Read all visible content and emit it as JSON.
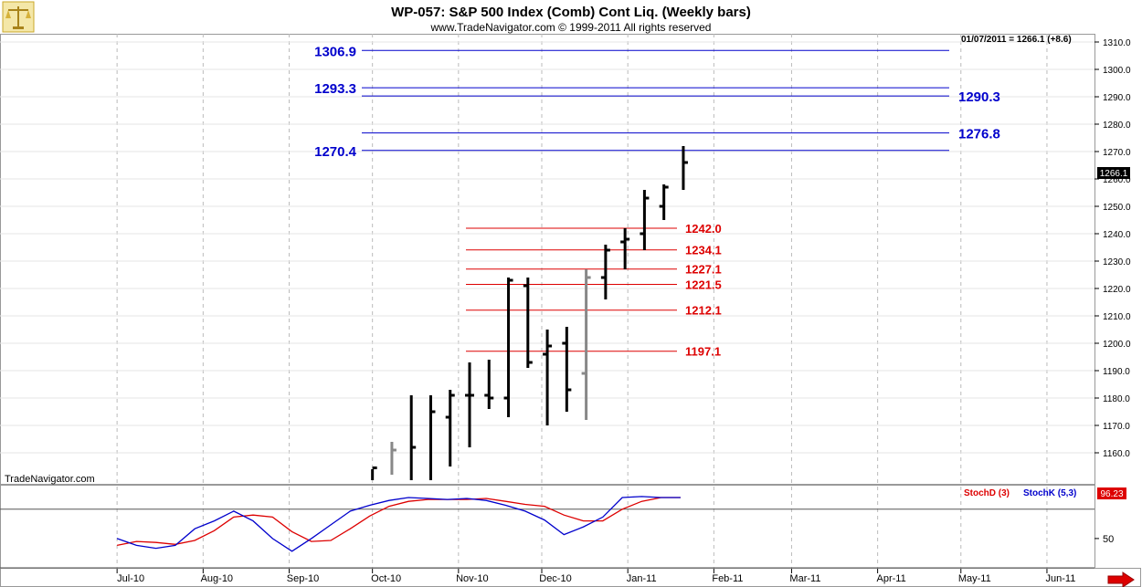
{
  "header": {
    "title": "WP-057:  S&P 500 Index (Comb) Cont Liq.  (Weekly bars)",
    "subtitle": "www.TradeNavigator.com © 1999-2011 All rights reserved",
    "last_quote": "01/07/2011 = 1266.1 (+8.6)",
    "watermark": "TradeNavigator.com",
    "price_tag": "1266.1",
    "stoch_tag": "96.23",
    "logo": "scales-logo"
  },
  "legend": {
    "stoch_d_label": "StochD (3)",
    "stoch_k_label": "StochK (5,3)"
  },
  "colors": {
    "blue_level": "#0000cc",
    "red_level": "#dd0000",
    "bar_black": "#000000",
    "bar_gray": "#888888",
    "stoch_d": "#dd0000",
    "stoch_k": "#0000cc",
    "grid": "#bbbbbb"
  },
  "chart_data": [
    {
      "type": "ohlc",
      "title": "WP-057:  S&P 500 Index (Comb) Cont Liq.  (Weekly bars)",
      "x_labels": [
        "Jul-10",
        "Aug-10",
        "Sep-10",
        "Oct-10",
        "Nov-10",
        "Dec-10",
        "Jan-11",
        "Feb-11",
        "Mar-11",
        "Apr-11",
        "May-11",
        "Jun-11"
      ],
      "ylim": [
        1150,
        1316
      ],
      "y_ticks": [
        1160,
        1170,
        1180,
        1190,
        1200,
        1210,
        1220,
        1230,
        1240,
        1250,
        1260,
        1270,
        1280,
        1290,
        1300,
        1310
      ],
      "grid": true,
      "bars": [
        {
          "date": "2010-10-01",
          "open": null,
          "high": 1154,
          "low": 1150,
          "close": 1154.5,
          "color": "black"
        },
        {
          "date": "2010-10-08",
          "open": null,
          "high": 1164,
          "low": 1152,
          "close": 1161,
          "color": "gray"
        },
        {
          "date": "2010-10-15",
          "open": null,
          "high": 1181,
          "low": 1150,
          "close": 1162,
          "color": "black"
        },
        {
          "date": "2010-10-22",
          "open": null,
          "high": 1181,
          "low": 1150,
          "close": 1175,
          "color": "black"
        },
        {
          "date": "2010-10-29",
          "open": 1173,
          "high": 1183,
          "low": 1155,
          "close": 1181,
          "color": "black"
        },
        {
          "date": "2010-11-05",
          "open": 1181,
          "high": 1193,
          "low": 1162,
          "close": 1181,
          "color": "black"
        },
        {
          "date": "2010-11-12",
          "open": 1181,
          "high": 1194,
          "low": 1176,
          "close": 1180,
          "color": "black"
        },
        {
          "date": "2010-11-19",
          "open": 1180,
          "high": 1224,
          "low": 1173,
          "close": 1223,
          "color": "black"
        },
        {
          "date": "2010-11-26",
          "open": 1221,
          "high": 1224,
          "low": 1191,
          "close": 1193,
          "color": "black"
        },
        {
          "date": "2010-12-03",
          "open": 1196,
          "high": 1205,
          "low": 1170,
          "close": 1199,
          "color": "black"
        },
        {
          "date": "2010-12-10",
          "open": 1200,
          "high": 1206,
          "low": 1175,
          "close": 1183,
          "color": "black"
        },
        {
          "date": "2010-12-17",
          "open": 1189,
          "high": 1227,
          "low": 1172,
          "close": 1224,
          "color": "gray"
        },
        {
          "date": "2010-12-24",
          "open": 1224,
          "high": 1236,
          "low": 1216,
          "close": 1234,
          "color": "black"
        },
        {
          "date": "2010-12-31",
          "open": 1237,
          "high": 1242,
          "low": 1227,
          "close": 1238,
          "color": "black"
        },
        {
          "date": "2011-01-07",
          "open": 1240,
          "high": 1256,
          "low": 1234,
          "close": 1253,
          "color": "black"
        },
        {
          "date": "2011-01-14",
          "open": 1250,
          "high": 1258,
          "low": 1245,
          "close": 1257,
          "color": "black"
        },
        {
          "date": "2011-01-21",
          "open": null,
          "high": 1272,
          "low": 1256,
          "close": 1266,
          "color": "black"
        }
      ],
      "levels_blue": [
        {
          "value": 1306.9,
          "label": "1306.9",
          "label_side": "left"
        },
        {
          "value": 1293.3,
          "label": "1293.3",
          "label_side": "left"
        },
        {
          "value": 1290.3,
          "label": "1290.3",
          "label_side": "right"
        },
        {
          "value": 1276.8,
          "label": "1276.8",
          "label_side": "right"
        },
        {
          "value": 1270.4,
          "label": "1270.4",
          "label_side": "left"
        }
      ],
      "levels_red": [
        {
          "value": 1242.0,
          "label": "1242.0"
        },
        {
          "value": 1234.1,
          "label": "1234.1"
        },
        {
          "value": 1227.1,
          "label": "1227.1"
        },
        {
          "value": 1221.5,
          "label": "1221.5"
        },
        {
          "value": 1212.1,
          "label": "1212.1"
        },
        {
          "value": 1197.1,
          "label": "1197.1"
        }
      ]
    },
    {
      "type": "line",
      "title": "",
      "ylim": [
        20,
        100
      ],
      "y_ticks": [
        50
      ],
      "reference_lines": [
        80,
        20
      ],
      "series": [
        {
          "name": "StochD (3)",
          "color": "red",
          "x": [
            "2010-07-01",
            "2010-07-08",
            "2010-07-15",
            "2010-07-22",
            "2010-07-29",
            "2010-08-05",
            "2010-08-12",
            "2010-08-19",
            "2010-08-26",
            "2010-09-02",
            "2010-09-09",
            "2010-09-16",
            "2010-09-23",
            "2010-09-30",
            "2010-10-07",
            "2010-10-14",
            "2010-10-21",
            "2010-10-28",
            "2010-11-04",
            "2010-11-11",
            "2010-11-18",
            "2010-11-25",
            "2010-12-02",
            "2010-12-09",
            "2010-12-16",
            "2010-12-23",
            "2010-12-30",
            "2011-01-06",
            "2011-01-13",
            "2011-01-20"
          ],
          "values": [
            43,
            47,
            46,
            44,
            48,
            58,
            72,
            74,
            72,
            57,
            47,
            48,
            60,
            73,
            83,
            88,
            90,
            90,
            90,
            91,
            88,
            85,
            83,
            74,
            68,
            68,
            80,
            88,
            92,
            92
          ]
        },
        {
          "name": "StochK (5,3)",
          "color": "blue",
          "x": [
            "2010-07-01",
            "2010-07-08",
            "2010-07-15",
            "2010-07-22",
            "2010-07-29",
            "2010-08-05",
            "2010-08-12",
            "2010-08-19",
            "2010-08-26",
            "2010-09-02",
            "2010-09-09",
            "2010-09-16",
            "2010-09-23",
            "2010-09-30",
            "2010-10-07",
            "2010-10-14",
            "2010-10-21",
            "2010-10-28",
            "2010-11-04",
            "2010-11-11",
            "2010-11-18",
            "2010-11-25",
            "2010-12-02",
            "2010-12-09",
            "2010-12-16",
            "2010-12-23",
            "2010-12-30",
            "2011-01-06",
            "2011-01-13",
            "2011-01-20"
          ],
          "values": [
            50,
            43,
            40,
            43,
            60,
            68,
            78,
            68,
            50,
            37,
            50,
            64,
            78,
            84,
            89,
            92,
            91,
            90,
            91,
            89,
            84,
            78,
            69,
            54,
            62,
            72,
            92,
            93,
            92,
            92
          ]
        }
      ]
    }
  ]
}
